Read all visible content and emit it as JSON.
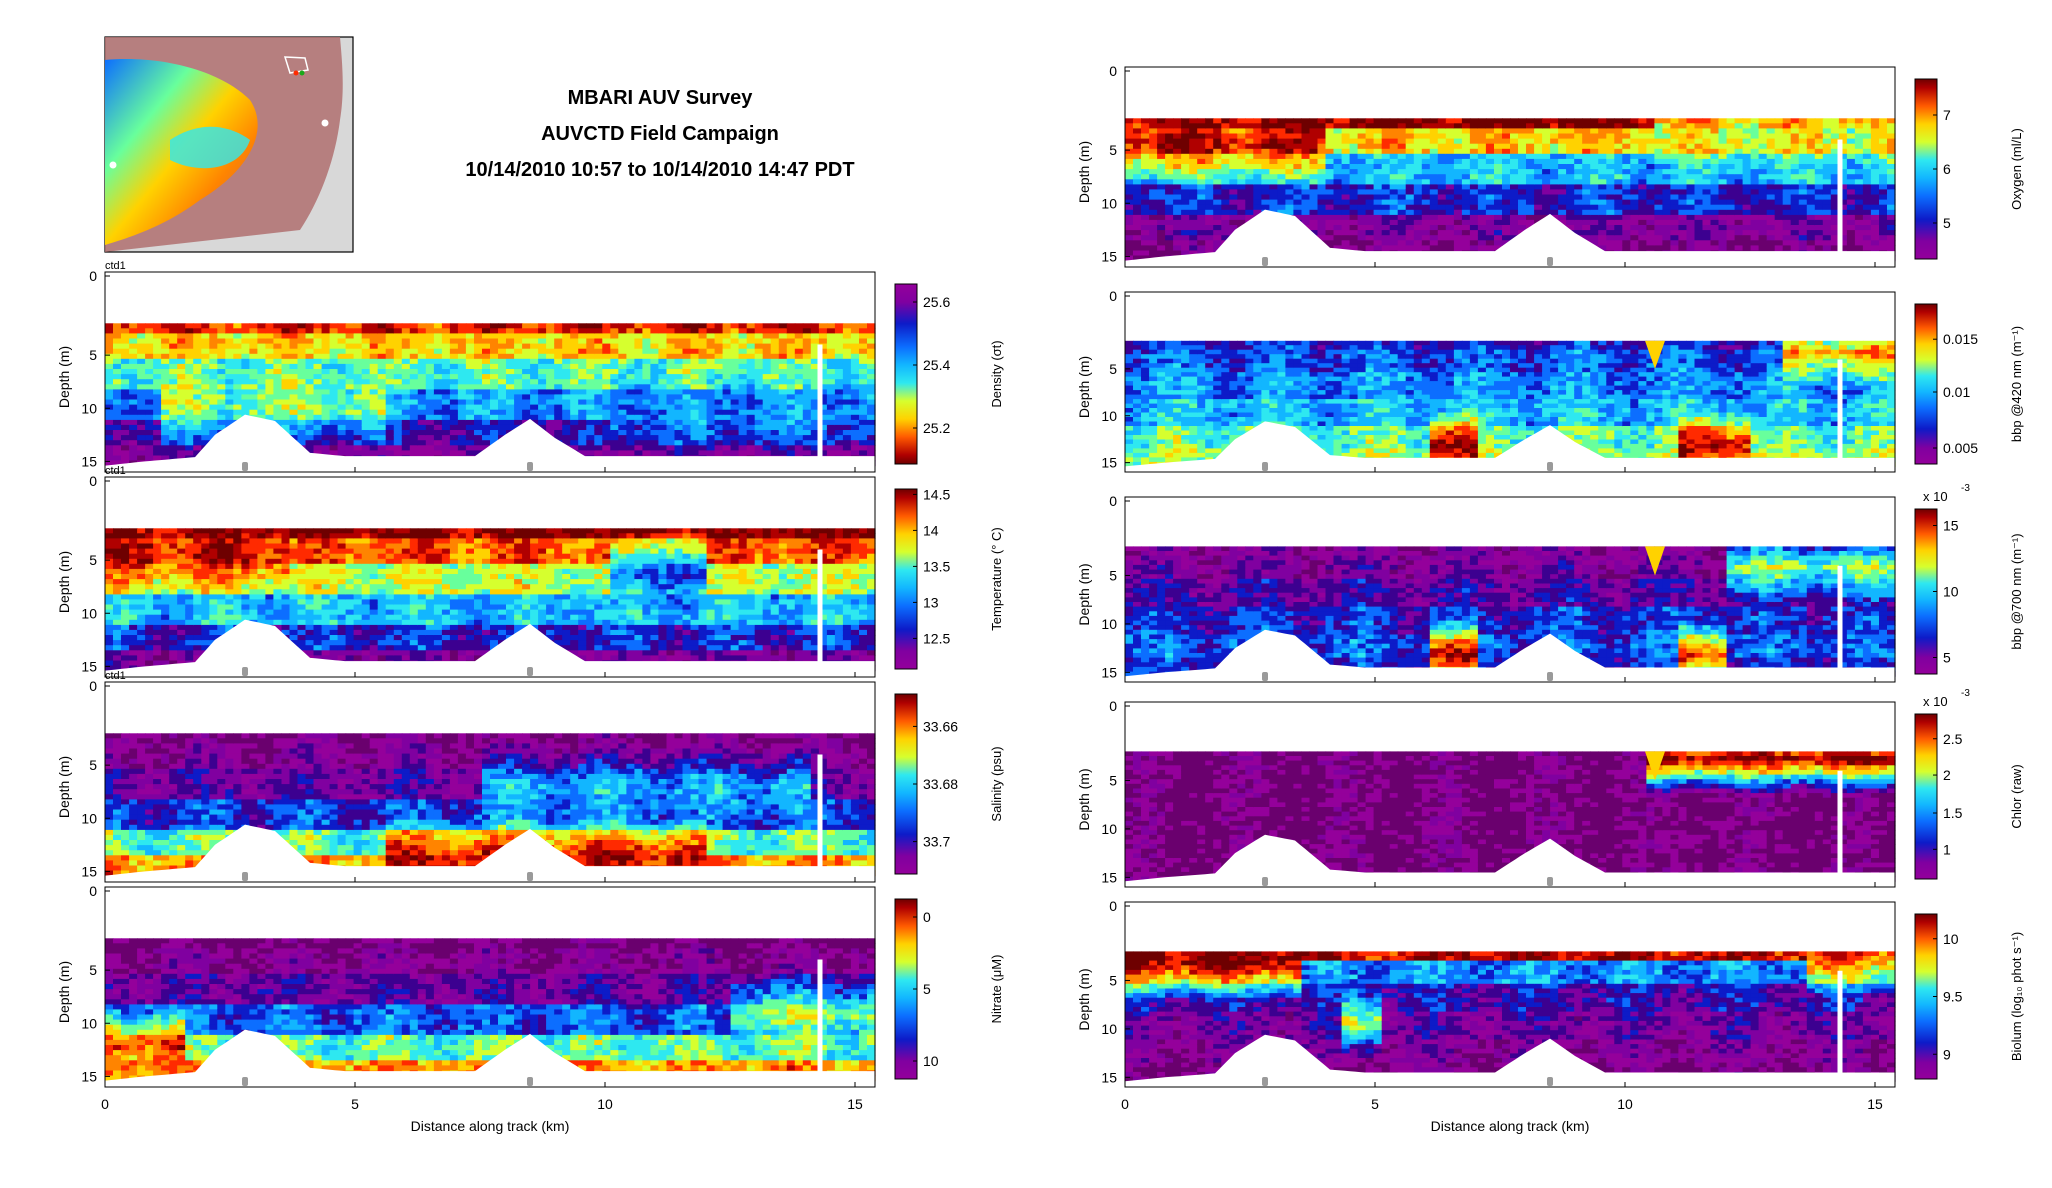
{
  "header": {
    "title_lines": [
      "MBARI AUV Survey",
      "AUVCTD Field Campaign",
      "10/14/2010 10:57 to 10/14/2010 14:47 PDT"
    ]
  },
  "colors": {
    "cmap": [
      "#6a006e",
      "#94009b",
      "#8000a0",
      "#3c0090",
      "#0d1bc8",
      "#0c6eff",
      "#12b6ff",
      "#2ee8f0",
      "#68ff9c",
      "#d6ff2e",
      "#ffd200",
      "#ff8400",
      "#ff2a00",
      "#b00000",
      "#6e0000"
    ],
    "bathymetry": "#ffffff",
    "marker": "#9a9a9a"
  },
  "chart_data": [
    {
      "id": "density",
      "type": "heatmap",
      "ylabel": "Depth (m)",
      "xlabel": "",
      "top_label": "ctd1",
      "cbar_label": "Density (σt)",
      "cbar_ticks": [
        "25.2",
        "25.4",
        "25.6"
      ],
      "cbar_tick_values": [
        0.2,
        0.55,
        0.9
      ],
      "x_ticks": [
        "0",
        "5",
        "10",
        "15"
      ],
      "y_ticks": [
        "0",
        "5",
        "10",
        "15"
      ],
      "xlim": [
        0,
        15.4
      ],
      "ylim": [
        0,
        16
      ],
      "inverted_colors": true,
      "profile": [
        0.15,
        0.3,
        0.45,
        0.6,
        0.75,
        0.85
      ],
      "surface_anomaly": "none",
      "regions": [
        [
          1.0,
          5.5,
          9.5,
          0.4
        ],
        [
          10.0,
          16.0,
          10.5,
          0.6
        ]
      ]
    },
    {
      "id": "temperature",
      "type": "heatmap",
      "ylabel": "Depth (m)",
      "xlabel": "",
      "top_label": "ctd1",
      "cbar_label": "Temperature (° C)",
      "cbar_ticks": [
        "14.5",
        "14",
        "13.5",
        "13",
        "12.5"
      ],
      "cbar_tick_values": [
        0.97,
        0.77,
        0.57,
        0.37,
        0.17
      ],
      "x_ticks": [
        "0",
        "5",
        "10",
        "15"
      ],
      "y_ticks": [
        "0",
        "5",
        "10",
        "15"
      ],
      "xlim": [
        0,
        15.4
      ],
      "ylim": [
        0,
        16
      ],
      "inverted_colors": false,
      "profile": [
        0.95,
        0.8,
        0.62,
        0.45,
        0.3,
        0.15
      ],
      "surface_anomaly": "none",
      "regions": [
        [
          0,
          3.6,
          4,
          0.9
        ],
        [
          10.0,
          12.0,
          6,
          0.35
        ]
      ]
    },
    {
      "id": "salinity",
      "type": "heatmap",
      "ylabel": "Depth (m)",
      "xlabel": "",
      "top_label": "ctd1",
      "cbar_label": "Salinity (psu)",
      "cbar_ticks": [
        "33.66",
        "33.68",
        "33.7"
      ],
      "cbar_tick_values": [
        0.82,
        0.5,
        0.18
      ],
      "x_ticks": [
        "0",
        "5",
        "10",
        "15"
      ],
      "y_ticks": [
        "0",
        "5",
        "10",
        "15"
      ],
      "xlim": [
        0,
        15.4
      ],
      "ylim": [
        0,
        16
      ],
      "inverted_colors": false,
      "profile": [
        0.08,
        0.12,
        0.2,
        0.32,
        0.55,
        0.75
      ],
      "surface_anomaly": "none",
      "regions": [
        [
          7.5,
          14.0,
          7.0,
          0.45
        ],
        [
          5.5,
          12.0,
          13.5,
          0.9
        ]
      ]
    },
    {
      "id": "nitrate",
      "type": "heatmap",
      "ylabel": "Depth (m)",
      "xlabel": "Distance along track (km)",
      "top_label": "",
      "cbar_label": "Nitrate (μM)",
      "cbar_ticks": [
        "0",
        "5",
        "10"
      ],
      "cbar_tick_values": [
        0.9,
        0.5,
        0.1
      ],
      "x_ticks": [
        "0",
        "5",
        "10",
        "15"
      ],
      "y_ticks": [
        "0",
        "5",
        "10",
        "15"
      ],
      "xlim": [
        0,
        15.4
      ],
      "ylim": [
        0,
        16
      ],
      "inverted_colors": false,
      "profile": [
        0.05,
        0.1,
        0.2,
        0.35,
        0.55,
        0.75
      ],
      "surface_anomaly": "none",
      "regions": [
        [
          12.5,
          15.5,
          9,
          0.6
        ],
        [
          0,
          1.5,
          12,
          0.85
        ]
      ]
    },
    {
      "id": "oxygen",
      "type": "heatmap",
      "ylabel": "Depth (m)",
      "xlabel": "",
      "top_label": "",
      "cbar_label": "Oxygen (ml/L)",
      "cbar_ticks": [
        "7",
        "6",
        "5"
      ],
      "cbar_tick_values": [
        0.8,
        0.5,
        0.2
      ],
      "x_ticks": [
        "0",
        "5",
        "10",
        "15"
      ],
      "y_ticks": [
        "0",
        "5",
        "10",
        "15"
      ],
      "xlim": [
        0,
        15.4
      ],
      "ylim": [
        0,
        16
      ],
      "inverted_colors": false,
      "profile": [
        0.95,
        0.7,
        0.45,
        0.3,
        0.15,
        0.08
      ],
      "surface_anomaly": "none",
      "regions": [
        [
          0,
          4,
          4,
          0.9
        ],
        [
          10.5,
          15.5,
          3,
          0.65
        ]
      ]
    },
    {
      "id": "bbp420",
      "type": "heatmap",
      "ylabel": "Depth (m)",
      "xlabel": "",
      "top_label": "",
      "cbar_label": "bbp @420 nm (m⁻¹)",
      "cbar_ticks": [
        "0.015",
        "0.01",
        "0.005"
      ],
      "cbar_tick_values": [
        0.78,
        0.45,
        0.1
      ],
      "x_ticks": [
        "0",
        "5",
        "10",
        "15"
      ],
      "y_ticks": [
        "0",
        "5",
        "10",
        "15"
      ],
      "xlim": [
        0,
        15.4
      ],
      "ylim": [
        0,
        16
      ],
      "inverted_colors": false,
      "profile": [
        0.3,
        0.35,
        0.4,
        0.45,
        0.55,
        0.6
      ],
      "surface_anomaly": "blob",
      "regions": [
        [
          6,
          7,
          13,
          0.95
        ],
        [
          11,
          12.5,
          13,
          0.9
        ],
        [
          13,
          15.5,
          3,
          0.75
        ]
      ]
    },
    {
      "id": "bbp700",
      "type": "heatmap",
      "ylabel": "Depth (m)",
      "xlabel": "",
      "top_label": "",
      "cbar_label": "bbp @700 nm (m⁻¹)",
      "cbar_ticks": [
        "15",
        "10",
        "5"
      ],
      "cbar_tick_values": [
        0.9,
        0.5,
        0.1
      ],
      "x_ticks": [
        "0",
        "5",
        "10",
        "15"
      ],
      "y_ticks": [
        "0",
        "5",
        "10",
        "15"
      ],
      "xlim": [
        0,
        15.4
      ],
      "ylim": [
        0,
        16
      ],
      "inverted_colors": false,
      "multiplier": "x 10",
      "multiplier_exp": "-3",
      "profile": [
        0.12,
        0.15,
        0.22,
        0.3,
        0.35,
        0.3
      ],
      "surface_anomaly": "blob",
      "regions": [
        [
          6,
          7,
          13,
          0.9
        ],
        [
          11,
          12,
          13,
          0.85
        ],
        [
          12,
          15.5,
          4,
          0.6
        ]
      ]
    },
    {
      "id": "chlor",
      "type": "heatmap",
      "ylabel": "Depth (m)",
      "xlabel": "",
      "top_label": "",
      "cbar_label": "Chlor (raw)",
      "cbar_ticks": [
        "2.5",
        "2",
        "1.5",
        "1"
      ],
      "cbar_tick_values": [
        0.85,
        0.63,
        0.4,
        0.18
      ],
      "x_ticks": [
        "0",
        "5",
        "10",
        "15"
      ],
      "y_ticks": [
        "0",
        "5",
        "10",
        "15"
      ],
      "xlim": [
        0,
        15.4
      ],
      "ylim": [
        0,
        16
      ],
      "inverted_colors": false,
      "multiplier": "x 10",
      "multiplier_exp": "-3",
      "profile": [
        0.05,
        0.05,
        0.05,
        0.05,
        0.06,
        0.06
      ],
      "surface_anomaly": "thin",
      "regions": [
        [
          10.3,
          15.5,
          2.5,
          0.95
        ]
      ]
    },
    {
      "id": "biolum",
      "type": "heatmap",
      "ylabel": "Depth (m)",
      "xlabel": "Distance along track (km)",
      "top_label": "",
      "cbar_label": "Biolum (log₁₀ phot s⁻¹)",
      "cbar_ticks": [
        "10",
        "9.5",
        "9"
      ],
      "cbar_tick_values": [
        0.85,
        0.5,
        0.15
      ],
      "x_ticks": [
        "0",
        "5",
        "10",
        "15"
      ],
      "y_ticks": [
        "0",
        "5",
        "10",
        "15"
      ],
      "xlim": [
        0,
        15.4
      ],
      "ylim": [
        0,
        16
      ],
      "inverted_colors": false,
      "profile": [
        0.9,
        0.4,
        0.25,
        0.18,
        0.12,
        0.08
      ],
      "surface_anomaly": "none",
      "regions": [
        [
          0,
          3.5,
          3,
          0.95
        ],
        [
          4.2,
          5,
          9,
          0.65
        ],
        [
          13.5,
          15.5,
          2.5,
          0.8
        ]
      ]
    }
  ]
}
